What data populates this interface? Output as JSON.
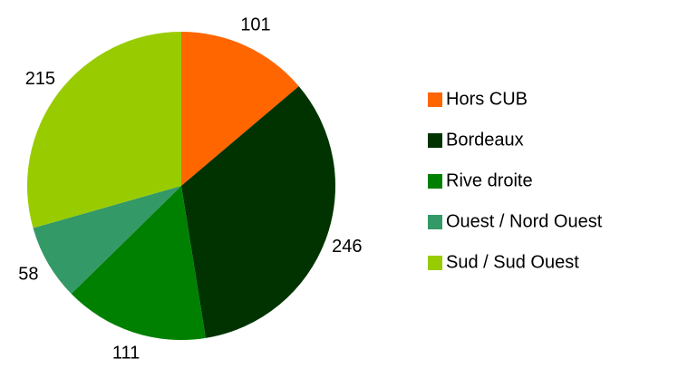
{
  "chart_data": {
    "type": "pie",
    "categories": [
      "Hors CUB",
      "Bordeaux",
      "Rive droite",
      "Ouest / Nord Ouest",
      "Sud / Sud Ouest"
    ],
    "values": [
      101,
      246,
      111,
      58,
      215
    ],
    "colors": [
      "#ff6600",
      "#003300",
      "#008000",
      "#339966",
      "#99cc00"
    ],
    "legend": "right"
  }
}
